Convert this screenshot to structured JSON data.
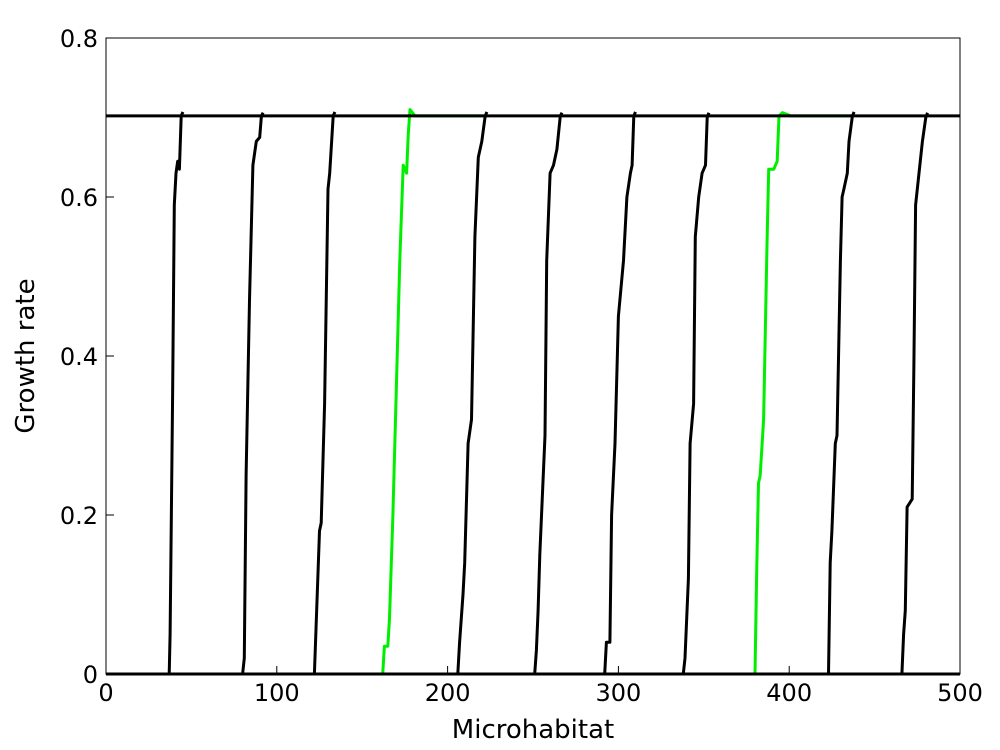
{
  "chart_data": {
    "type": "line",
    "xlabel": "Microhabitat",
    "ylabel": "Growth rate",
    "xlim": [
      0,
      500
    ],
    "ylim": [
      0,
      0.8
    ],
    "x_ticks": [
      0,
      100,
      200,
      300,
      400,
      500
    ],
    "x_tick_labels": [
      "0",
      "100",
      "200",
      "300",
      "400",
      "500"
    ],
    "y_ticks": [
      0,
      0.2,
      0.4,
      0.6,
      0.8
    ],
    "y_tick_labels": [
      "0",
      "0.2",
      "0.4",
      "0.6",
      "0.8"
    ],
    "grid": false,
    "legend": "none",
    "colors": {
      "black_series": "#000000",
      "green_series": "#00ee00",
      "reference_line": "#000000",
      "axes": "#000000"
    },
    "reference_line": {
      "y": 0.702
    },
    "series": [
      {
        "color": "black",
        "x": [
          0,
          37,
          37.5,
          39,
          40,
          41,
          42,
          43,
          44,
          45
        ],
        "y": [
          0,
          0,
          0.05,
          0.35,
          0.59,
          0.63,
          0.645,
          0.635,
          0.702,
          0.707
        ]
      },
      {
        "color": "black",
        "x": [
          37,
          80,
          81,
          82,
          84,
          86,
          88,
          90,
          91,
          92
        ],
        "y": [
          0,
          0,
          0.02,
          0.25,
          0.47,
          0.64,
          0.67,
          0.675,
          0.702,
          0.706
        ]
      },
      {
        "color": "black",
        "x": [
          80,
          122,
          123,
          125,
          126,
          128,
          130,
          131,
          133,
          134
        ],
        "y": [
          0,
          0,
          0.06,
          0.18,
          0.19,
          0.34,
          0.61,
          0.63,
          0.702,
          0.707
        ]
      },
      {
        "color": "green",
        "x": [
          122,
          162,
          163,
          165,
          166,
          168,
          172,
          174,
          176,
          177,
          178,
          181,
          222
        ],
        "y": [
          0,
          0,
          0.035,
          0.035,
          0.07,
          0.2,
          0.52,
          0.64,
          0.63,
          0.68,
          0.71,
          0.702,
          0.702
        ]
      },
      {
        "color": "black",
        "x": [
          181,
          206,
          207,
          209,
          210,
          212,
          214,
          216,
          218,
          220,
          222,
          223
        ],
        "y": [
          0,
          0,
          0.04,
          0.1,
          0.14,
          0.29,
          0.32,
          0.55,
          0.65,
          0.67,
          0.702,
          0.707
        ]
      },
      {
        "color": "black",
        "x": [
          206,
          251,
          252,
          253,
          254,
          257,
          258,
          260,
          262,
          264,
          266,
          267
        ],
        "y": [
          0,
          0,
          0.03,
          0.08,
          0.15,
          0.3,
          0.52,
          0.63,
          0.64,
          0.66,
          0.702,
          0.706
        ]
      },
      {
        "color": "black",
        "x": [
          251,
          292,
          293,
          295,
          296,
          298,
          300,
          303,
          305,
          307,
          308,
          309,
          310
        ],
        "y": [
          0,
          0,
          0.04,
          0.04,
          0.2,
          0.29,
          0.45,
          0.52,
          0.6,
          0.63,
          0.64,
          0.702,
          0.707
        ]
      },
      {
        "color": "black",
        "x": [
          292,
          338,
          339,
          341,
          342,
          344,
          345,
          347,
          349,
          351,
          352,
          353
        ],
        "y": [
          0,
          0,
          0.02,
          0.12,
          0.29,
          0.34,
          0.55,
          0.6,
          0.63,
          0.64,
          0.7,
          0.706
        ]
      },
      {
        "color": "green",
        "x": [
          338,
          380,
          381,
          382,
          383,
          385,
          387,
          388,
          389,
          391,
          393,
          394,
          396,
          401,
          437
        ],
        "y": [
          0,
          0,
          0.13,
          0.24,
          0.25,
          0.32,
          0.54,
          0.635,
          0.635,
          0.635,
          0.645,
          0.702,
          0.706,
          0.702,
          0.702
        ]
      },
      {
        "color": "black",
        "x": [
          401,
          423,
          424,
          425,
          427,
          428,
          430,
          431,
          432,
          434,
          435,
          437,
          438
        ],
        "y": [
          0,
          0,
          0.14,
          0.18,
          0.29,
          0.3,
          0.52,
          0.6,
          0.61,
          0.63,
          0.67,
          0.702,
          0.707
        ]
      },
      {
        "color": "black",
        "x": [
          423,
          466,
          467,
          468,
          469,
          472,
          473,
          474,
          476,
          478,
          480,
          481
        ],
        "y": [
          0,
          0,
          0.05,
          0.08,
          0.21,
          0.22,
          0.39,
          0.59,
          0.63,
          0.67,
          0.7,
          0.706
        ]
      }
    ]
  }
}
